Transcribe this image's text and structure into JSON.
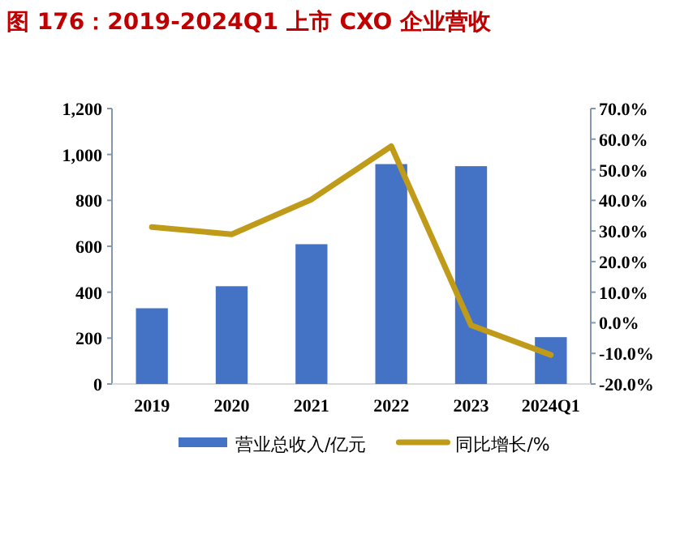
{
  "chart_data": {
    "type": "bar",
    "title": "图 176：2019-2024Q1 上市 CXO 企业营收",
    "categories": [
      "2019",
      "2020",
      "2021",
      "2022",
      "2023",
      "2024Q1"
    ],
    "series": [
      {
        "name": "营业总收入/亿元",
        "color": "#4472c4",
        "values": [
          330,
          426,
          609,
          958,
          949,
          204
        ]
      },
      {
        "name": "同比增长/%",
        "type": "line",
        "axis": "y2",
        "color": "#c09b1a",
        "values": [
          31.3,
          28.9,
          40.3,
          57.7,
          -0.8,
          -10.5
        ]
      }
    ],
    "ylim": [
      0,
      1200
    ],
    "yticks": [
      0,
      200,
      400,
      600,
      800,
      {
        "value": 1000,
        "label": "1,000"
      },
      {
        "value": 1200,
        "label": "1,200"
      }
    ],
    "y2lim": [
      -20,
      70
    ],
    "y2ticks": [
      {
        "value": -20,
        "label": "-20.0%"
      },
      {
        "value": -10,
        "label": "-10.0%"
      },
      {
        "value": 0,
        "label": "0.0%"
      },
      {
        "value": 10,
        "label": "10.0%"
      },
      {
        "value": 20,
        "label": "20.0%"
      },
      {
        "value": 30,
        "label": "30.0%"
      },
      {
        "value": 40,
        "label": "40.0%"
      },
      {
        "value": 50,
        "label": "50.0%"
      },
      {
        "value": 60,
        "label": "60.0%"
      },
      {
        "value": 70,
        "label": "70.0%"
      }
    ],
    "legend": "bottom",
    "grid": false
  }
}
